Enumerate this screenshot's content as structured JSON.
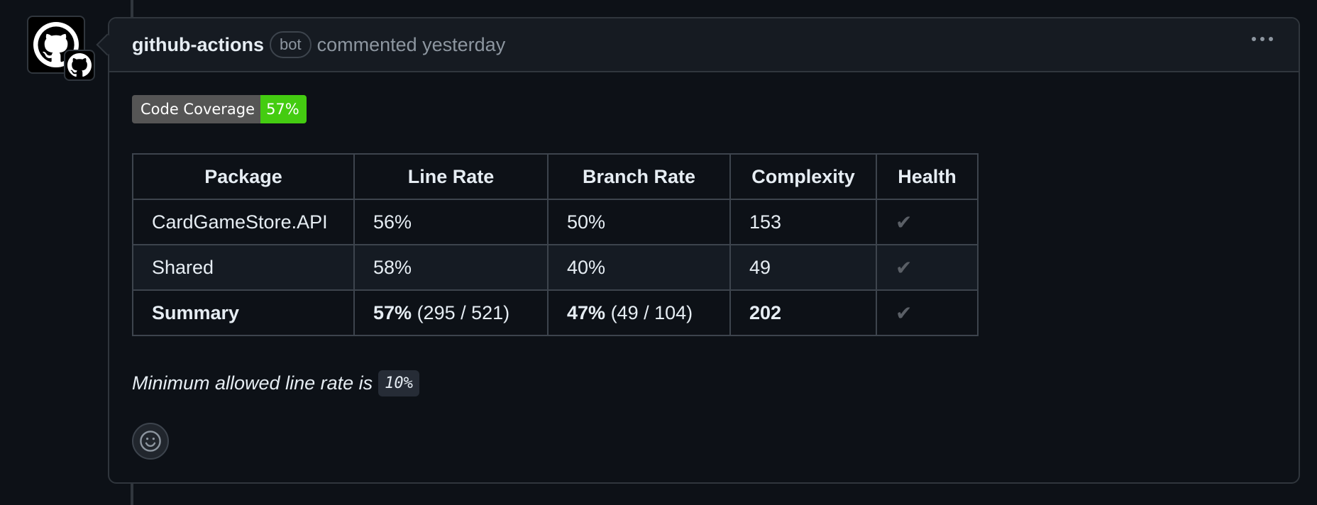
{
  "comment": {
    "author": "github-actions",
    "bot_label": "bot",
    "meta": "commented yesterday",
    "menu_icon": "kebab-horizontal-icon",
    "avatar_icon": "github-octocat-icon"
  },
  "badge": {
    "label": "Code Coverage",
    "value": "57%",
    "label_color": "#555555",
    "value_color": "#44cc11"
  },
  "table": {
    "headers": [
      "Package",
      "Line Rate",
      "Branch Rate",
      "Complexity",
      "Health"
    ],
    "rows": [
      {
        "package": "CardGameStore.API",
        "line_rate": "56%",
        "branch_rate": "50%",
        "complexity": "153",
        "health": "✔"
      },
      {
        "package": "Shared",
        "line_rate": "58%",
        "branch_rate": "40%",
        "complexity": "49",
        "health": "✔"
      }
    ],
    "summary": {
      "package": "Summary",
      "line_rate": "57%",
      "line_detail": "(295 / 521)",
      "branch_rate": "47%",
      "branch_detail": "(49 / 104)",
      "complexity": "202",
      "health": "✔"
    }
  },
  "minimum": {
    "text": "Minimum allowed line rate is",
    "code": "10%"
  },
  "reaction": {
    "icon": "smiley-icon"
  },
  "colors": {
    "background": "#0d1117",
    "header_background": "#161b22",
    "border": "#30363d",
    "muted_text": "#8d96a0"
  }
}
